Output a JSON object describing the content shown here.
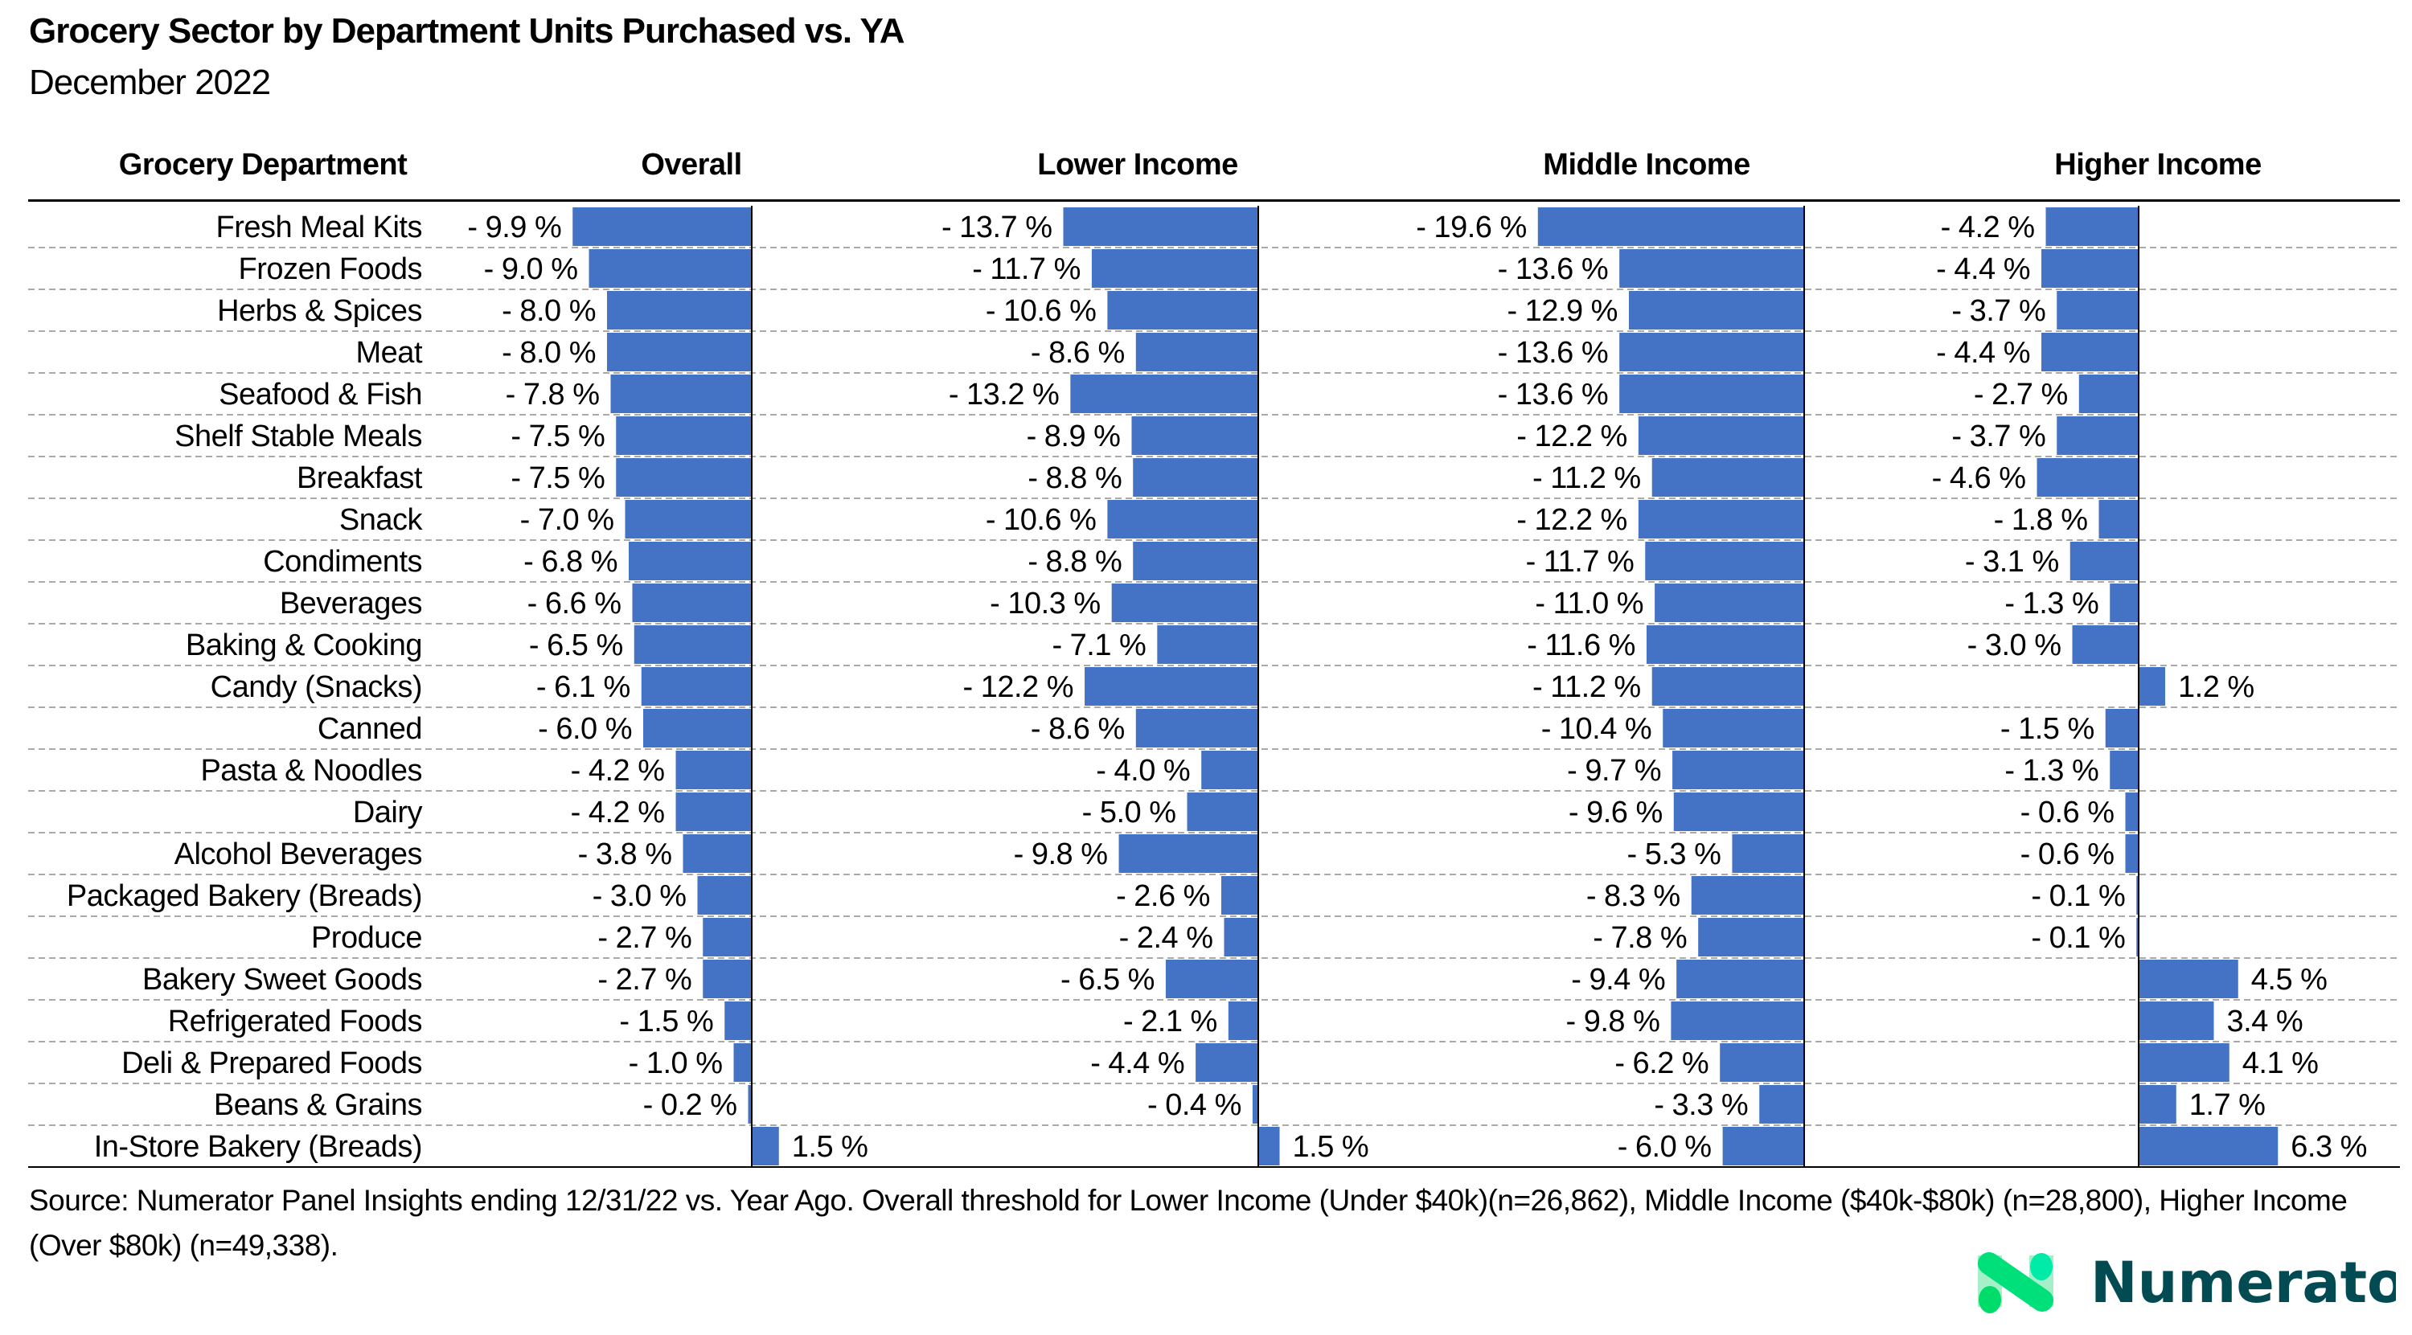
{
  "title": "Grocery Sector by Department Units Purchased vs. YA",
  "subtitle": "December 2022",
  "source": "Source: Numerator Panel Insights ending 12/31/22 vs. Year Ago. Overall threshold for Lower Income (Under $40k)(n=26,862), Middle Income ($40k-$80k) (n=28,800), Higher Income (Over $80k) (n=49,338).",
  "logo_text": "Numerator",
  "colors": {
    "bar": "#4472C4",
    "logo_text": "#034B53",
    "logo_green": "#00E07A"
  },
  "chart_data": {
    "type": "bar",
    "orientation": "horizontal",
    "category_header": "Grocery Department",
    "unit": "%",
    "categories": [
      "Fresh Meal Kits",
      "Frozen Foods",
      "Herbs & Spices",
      "Meat",
      "Seafood & Fish",
      "Shelf Stable Meals",
      "Breakfast",
      "Snack",
      "Condiments",
      "Beverages",
      "Baking & Cooking",
      "Candy (Snacks)",
      "Canned",
      "Pasta & Noodles",
      "Dairy",
      "Alcohol Beverages",
      "Packaged Bakery (Breads)",
      "Produce",
      "Bakery Sweet Goods",
      "Refrigerated Foods",
      "Deli & Prepared Foods",
      "Beans & Grains",
      "In-Store Bakery (Breads)"
    ],
    "series": [
      {
        "name": "Overall",
        "values": [
          -9.9,
          -9.0,
          -8.0,
          -8.0,
          -7.8,
          -7.5,
          -7.5,
          -7.0,
          -6.8,
          -6.6,
          -6.5,
          -6.1,
          -6.0,
          -4.2,
          -4.2,
          -3.8,
          -3.0,
          -2.7,
          -2.7,
          -1.5,
          -1.0,
          -0.2,
          1.5
        ]
      },
      {
        "name": "Lower Income",
        "values": [
          -13.7,
          -11.7,
          -10.6,
          -8.6,
          -13.2,
          -8.9,
          -8.8,
          -10.6,
          -8.8,
          -10.3,
          -7.1,
          -12.2,
          -8.6,
          -4.0,
          -5.0,
          -9.8,
          -2.6,
          -2.4,
          -6.5,
          -2.1,
          -4.4,
          -0.4,
          1.5
        ]
      },
      {
        "name": "Middle Income",
        "values": [
          -19.6,
          -13.6,
          -12.9,
          -13.6,
          -13.6,
          -12.2,
          -11.2,
          -12.2,
          -11.7,
          -11.0,
          -11.6,
          -11.2,
          -10.4,
          -9.7,
          -9.6,
          -5.3,
          -8.3,
          -7.8,
          -9.4,
          -9.8,
          -6.2,
          -3.3,
          -6.0
        ]
      },
      {
        "name": "Higher Income",
        "values": [
          -4.2,
          -4.4,
          -3.7,
          -4.4,
          -2.7,
          -3.7,
          -4.6,
          -1.8,
          -3.1,
          -1.3,
          -3.0,
          1.2,
          -1.5,
          -1.3,
          -0.6,
          -0.6,
          -0.1,
          -0.1,
          4.5,
          3.4,
          4.1,
          1.7,
          6.3
        ]
      }
    ],
    "grid": "dashed row separators",
    "legend": "none (column headers)"
  }
}
